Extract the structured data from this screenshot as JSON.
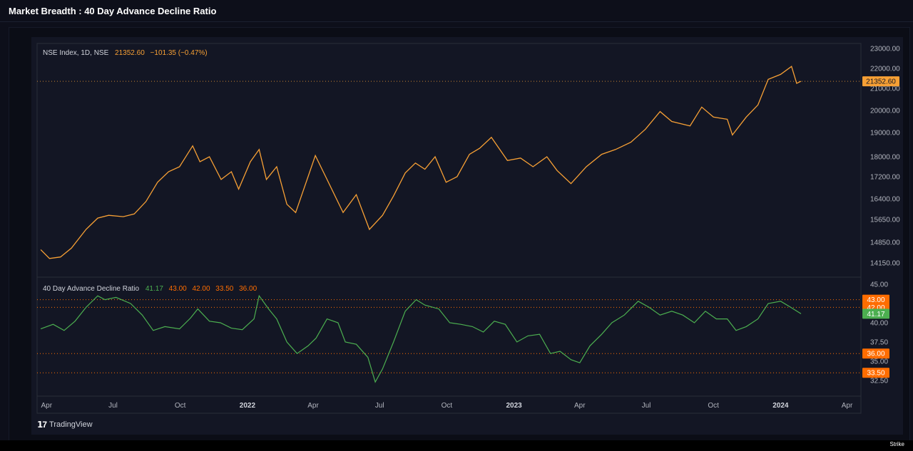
{
  "page": {
    "title": "Market Breadth : 40 Day Advance Decline Ratio"
  },
  "footer": {
    "brand": "TradingView",
    "logo": "tradingview-logo",
    "bottom_mark": "Strike"
  },
  "chart_data": [
    {
      "type": "line",
      "legend": {
        "symbol": "NSE Index, 1D, NSE",
        "last": "21352.60",
        "change": "−101.35 (−0.47%)"
      },
      "color": "#f7a035",
      "y_ticks": [
        "23000.00",
        "22000.00",
        "21000.00",
        "20000.00",
        "19000.00",
        "18000.00",
        "17200.00",
        "16400.00",
        "15650.00",
        "14850.00",
        "14150.00"
      ],
      "last_value": 21352.6,
      "last_label": "21352.60",
      "x_ticks": [
        "Apr",
        "Jul",
        "Oct",
        "2022",
        "Apr",
        "Jul",
        "Oct",
        "2023",
        "Apr",
        "Jul",
        "Oct",
        "2024",
        "Apr"
      ],
      "series": [
        {
          "points": [
            [
              "2021-03-24",
              14600
            ],
            [
              "2021-04-05",
              14300
            ],
            [
              "2021-04-20",
              14350
            ],
            [
              "2021-05-05",
              14650
            ],
            [
              "2021-05-25",
              15300
            ],
            [
              "2021-06-10",
              15700
            ],
            [
              "2021-06-25",
              15800
            ],
            [
              "2021-07-15",
              15750
            ],
            [
              "2021-07-30",
              15850
            ],
            [
              "2021-08-15",
              16300
            ],
            [
              "2021-08-31",
              17000
            ],
            [
              "2021-09-15",
              17400
            ],
            [
              "2021-09-30",
              17600
            ],
            [
              "2021-10-18",
              18450
            ],
            [
              "2021-10-28",
              17800
            ],
            [
              "2021-11-10",
              18000
            ],
            [
              "2021-11-26",
              17100
            ],
            [
              "2021-12-10",
              17400
            ],
            [
              "2021-12-20",
              16750
            ],
            [
              "2022-01-05",
              17800
            ],
            [
              "2022-01-17",
              18300
            ],
            [
              "2022-01-27",
              17100
            ],
            [
              "2022-02-10",
              17600
            ],
            [
              "2022-02-24",
              16200
            ],
            [
              "2022-03-08",
              15900
            ],
            [
              "2022-03-25",
              17200
            ],
            [
              "2022-04-04",
              18050
            ],
            [
              "2022-04-20",
              17100
            ],
            [
              "2022-05-12",
              15900
            ],
            [
              "2022-05-30",
              16550
            ],
            [
              "2022-06-17",
              15300
            ],
            [
              "2022-07-05",
              15800
            ],
            [
              "2022-07-20",
              16500
            ],
            [
              "2022-08-05",
              17350
            ],
            [
              "2022-08-19",
              17750
            ],
            [
              "2022-09-01",
              17500
            ],
            [
              "2022-09-15",
              18000
            ],
            [
              "2022-09-30",
              17000
            ],
            [
              "2022-10-15",
              17200
            ],
            [
              "2022-11-01",
              18100
            ],
            [
              "2022-11-15",
              18350
            ],
            [
              "2022-12-01",
              18800
            ],
            [
              "2022-12-23",
              17850
            ],
            [
              "2023-01-10",
              17950
            ],
            [
              "2023-01-27",
              17600
            ],
            [
              "2023-02-15",
              18000
            ],
            [
              "2023-03-01",
              17450
            ],
            [
              "2023-03-20",
              16950
            ],
            [
              "2023-04-10",
              17600
            ],
            [
              "2023-05-01",
              18100
            ],
            [
              "2023-05-20",
              18300
            ],
            [
              "2023-06-10",
              18600
            ],
            [
              "2023-06-30",
              19150
            ],
            [
              "2023-07-20",
              19950
            ],
            [
              "2023-08-05",
              19500
            ],
            [
              "2023-08-30",
              19300
            ],
            [
              "2023-09-15",
              20150
            ],
            [
              "2023-10-01",
              19700
            ],
            [
              "2023-10-20",
              19600
            ],
            [
              "2023-10-27",
              18900
            ],
            [
              "2023-11-15",
              19700
            ],
            [
              "2023-12-01",
              20250
            ],
            [
              "2023-12-15",
              21450
            ],
            [
              "2024-01-01",
              21700
            ],
            [
              "2024-01-16",
              22100
            ],
            [
              "2024-01-23",
              21250
            ],
            [
              "2024-01-29",
              21352.6
            ]
          ]
        }
      ]
    },
    {
      "type": "line",
      "legend": {
        "name": "40 Day Advance Decline Ratio",
        "values": [
          "41.17",
          "43.00",
          "42.00",
          "33.50",
          "36.00"
        ]
      },
      "color": "#4caf50",
      "y_ticks": [
        "45.00",
        "40.00",
        "37.50",
        "35.00",
        "32.50"
      ],
      "levels": [
        {
          "value": 43.0,
          "label": "43.00",
          "color": "#ff6d00"
        },
        {
          "value": 42.0,
          "label": "42.00",
          "color": "#ff6d00"
        },
        {
          "value": 36.0,
          "label": "36.00",
          "color": "#ff6d00"
        },
        {
          "value": 33.5,
          "label": "33.50",
          "color": "#ff6d00"
        }
      ],
      "last_value": 41.17,
      "last_label": "41.17",
      "series": [
        {
          "points": [
            [
              "2021-03-24",
              39.2
            ],
            [
              "2021-04-10",
              39.8
            ],
            [
              "2021-04-25",
              39.0
            ],
            [
              "2021-05-10",
              40.2
            ],
            [
              "2021-05-25",
              42.0
            ],
            [
              "2021-06-10",
              43.5
            ],
            [
              "2021-06-20",
              43.0
            ],
            [
              "2021-07-05",
              43.3
            ],
            [
              "2021-07-25",
              42.5
            ],
            [
              "2021-08-10",
              41.0
            ],
            [
              "2021-08-25",
              39.0
            ],
            [
              "2021-09-10",
              39.5
            ],
            [
              "2021-09-30",
              39.2
            ],
            [
              "2021-10-15",
              40.6
            ],
            [
              "2021-10-25",
              41.8
            ],
            [
              "2021-11-10",
              40.2
            ],
            [
              "2021-11-25",
              40.0
            ],
            [
              "2021-12-10",
              39.3
            ],
            [
              "2021-12-25",
              39.1
            ],
            [
              "2022-01-10",
              40.5
            ],
            [
              "2022-01-17",
              43.5
            ],
            [
              "2022-01-30",
              41.8
            ],
            [
              "2022-02-10",
              40.5
            ],
            [
              "2022-02-24",
              37.5
            ],
            [
              "2022-03-10",
              36.0
            ],
            [
              "2022-03-25",
              37.0
            ],
            [
              "2022-04-05",
              38.0
            ],
            [
              "2022-04-20",
              40.5
            ],
            [
              "2022-05-05",
              40.0
            ],
            [
              "2022-05-15",
              37.5
            ],
            [
              "2022-05-30",
              37.2
            ],
            [
              "2022-06-15",
              35.5
            ],
            [
              "2022-06-25",
              32.3
            ],
            [
              "2022-07-05",
              34.0
            ],
            [
              "2022-07-20",
              37.5
            ],
            [
              "2022-08-05",
              41.5
            ],
            [
              "2022-08-20",
              43.0
            ],
            [
              "2022-09-01",
              42.3
            ],
            [
              "2022-09-20",
              41.8
            ],
            [
              "2022-10-05",
              40.0
            ],
            [
              "2022-10-20",
              39.8
            ],
            [
              "2022-11-05",
              39.5
            ],
            [
              "2022-11-20",
              38.8
            ],
            [
              "2022-12-05",
              40.2
            ],
            [
              "2022-12-20",
              39.8
            ],
            [
              "2023-01-05",
              37.5
            ],
            [
              "2023-01-20",
              38.3
            ],
            [
              "2023-02-05",
              38.5
            ],
            [
              "2023-02-20",
              36.0
            ],
            [
              "2023-03-05",
              36.3
            ],
            [
              "2023-03-20",
              35.2
            ],
            [
              "2023-04-01",
              34.8
            ],
            [
              "2023-04-15",
              37.0
            ],
            [
              "2023-05-01",
              38.5
            ],
            [
              "2023-05-15",
              40.0
            ],
            [
              "2023-06-01",
              41.0
            ],
            [
              "2023-06-20",
              42.8
            ],
            [
              "2023-07-05",
              42.0
            ],
            [
              "2023-07-20",
              41.0
            ],
            [
              "2023-08-05",
              41.5
            ],
            [
              "2023-08-20",
              41.0
            ],
            [
              "2023-09-05",
              40.0
            ],
            [
              "2023-09-20",
              41.5
            ],
            [
              "2023-10-05",
              40.5
            ],
            [
              "2023-10-20",
              40.5
            ],
            [
              "2023-11-01",
              39.0
            ],
            [
              "2023-11-15",
              39.5
            ],
            [
              "2023-12-01",
              40.5
            ],
            [
              "2023-12-15",
              42.5
            ],
            [
              "2024-01-01",
              42.8
            ],
            [
              "2024-01-15",
              42.0
            ],
            [
              "2024-01-29",
              41.17
            ]
          ]
        }
      ]
    }
  ]
}
